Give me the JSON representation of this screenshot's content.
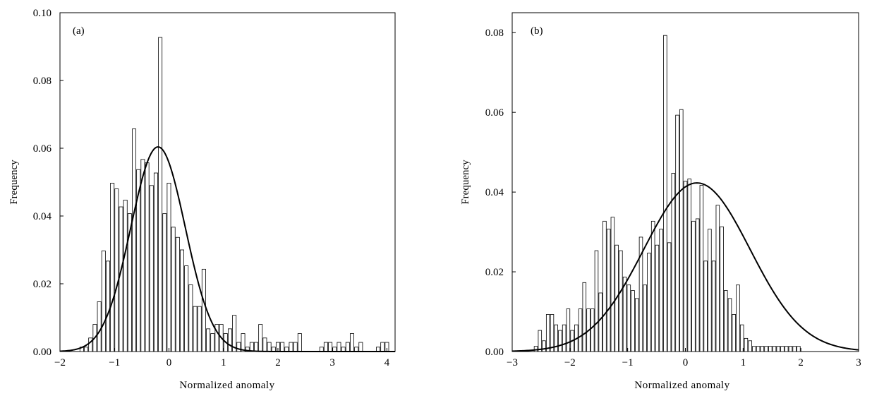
{
  "chart_data": [
    {
      "type": "bar",
      "panel_label": "(a)",
      "xlabel": "Normalized anomaly",
      "ylabel": "Frequency",
      "xlim": [
        -2,
        4.15
      ],
      "ylim": [
        0,
        0.1
      ],
      "xticks": [
        -2,
        -1,
        0,
        1,
        2,
        3,
        4
      ],
      "xtick_labels": [
        "−2",
        "−1",
        "0",
        "1",
        "2",
        "3",
        "4"
      ],
      "yticks": [
        0,
        0.02,
        0.04,
        0.06,
        0.08,
        0.1
      ],
      "ytick_labels": [
        "0.00",
        "0.02",
        "0.04",
        "0.06",
        "0.08",
        "0.10"
      ],
      "bin_width": 0.08,
      "bar_centers": [
        -1.6,
        -1.52,
        -1.44,
        -1.36,
        -1.28,
        -1.2,
        -1.12,
        -1.04,
        -0.96,
        -0.88,
        -0.8,
        -0.72,
        -0.64,
        -0.56,
        -0.48,
        -0.4,
        -0.32,
        -0.24,
        -0.16,
        -0.08,
        0.0,
        0.08,
        0.16,
        0.24,
        0.32,
        0.4,
        0.48,
        0.56,
        0.64,
        0.72,
        0.8,
        0.88,
        0.96,
        1.04,
        1.12,
        1.2,
        1.28,
        1.36,
        1.44,
        1.52,
        1.6,
        1.68,
        1.76,
        1.84,
        1.92,
        2.0,
        2.08,
        2.16,
        2.24,
        2.32,
        2.4,
        2.8,
        2.88,
        2.96,
        3.04,
        3.12,
        3.2,
        3.28,
        3.36,
        3.44,
        3.52,
        3.84,
        3.92,
        4.0
      ],
      "bar_values": [
        0.0013,
        0.0013,
        0.004,
        0.008,
        0.0147,
        0.0297,
        0.0267,
        0.0497,
        0.048,
        0.0427,
        0.0447,
        0.0407,
        0.0657,
        0.0537,
        0.0567,
        0.0557,
        0.049,
        0.0527,
        0.0927,
        0.0407,
        0.0497,
        0.0367,
        0.0337,
        0.03,
        0.0253,
        0.0197,
        0.0133,
        0.0133,
        0.0243,
        0.0067,
        0.0053,
        0.008,
        0.008,
        0.0053,
        0.0067,
        0.0107,
        0.0027,
        0.0053,
        0.0013,
        0.0027,
        0.0027,
        0.008,
        0.004,
        0.0027,
        0.0013,
        0.0027,
        0.0027,
        0.0013,
        0.0027,
        0.0027,
        0.0053,
        0.0013,
        0.0027,
        0.0027,
        0.0013,
        0.0027,
        0.0013,
        0.0027,
        0.0053,
        0.0013,
        0.0027,
        0.0013,
        0.0027,
        0.0027
      ],
      "fit_curve": {
        "type": "normal",
        "mean": -0.2,
        "sd": 0.5,
        "peak": 0.0604
      }
    },
    {
      "type": "bar",
      "panel_label": "(b)",
      "xlabel": "Normalized anomaly",
      "ylabel": "Frequency",
      "xlim": [
        -3,
        3
      ],
      "ylim": [
        0,
        0.085
      ],
      "xticks": [
        -3,
        -2,
        -1,
        0,
        1,
        2,
        3
      ],
      "xtick_labels": [
        "−3",
        "−2",
        "−1",
        "0",
        "1",
        "2",
        "3"
      ],
      "yticks": [
        0,
        0.02,
        0.04,
        0.06,
        0.08
      ],
      "ytick_labels": [
        "0.00",
        "0.02",
        "0.04",
        "0.06",
        "0.08"
      ],
      "bin_width": 0.07,
      "bar_centers": [
        -2.59,
        -2.52,
        -2.45,
        -2.38,
        -2.31,
        -2.24,
        -2.17,
        -2.1,
        -2.03,
        -1.96,
        -1.89,
        -1.82,
        -1.75,
        -1.68,
        -1.61,
        -1.54,
        -1.47,
        -1.4,
        -1.33,
        -1.26,
        -1.19,
        -1.12,
        -1.05,
        -0.98,
        -0.91,
        -0.84,
        -0.77,
        -0.7,
        -0.63,
        -0.56,
        -0.49,
        -0.42,
        -0.35,
        -0.28,
        -0.21,
        -0.14,
        -0.07,
        0.0,
        0.07,
        0.14,
        0.21,
        0.28,
        0.35,
        0.42,
        0.49,
        0.56,
        0.63,
        0.7,
        0.77,
        0.84,
        0.91,
        0.98,
        1.05,
        1.12,
        1.19,
        1.26,
        1.33,
        1.4,
        1.47,
        1.54,
        1.61,
        1.68,
        1.75,
        1.82,
        1.89,
        1.96
      ],
      "bar_values": [
        0.0013,
        0.0053,
        0.0027,
        0.0093,
        0.0093,
        0.0067,
        0.0053,
        0.0067,
        0.0107,
        0.0053,
        0.0067,
        0.0107,
        0.0173,
        0.0107,
        0.0107,
        0.0253,
        0.0147,
        0.0327,
        0.0307,
        0.0337,
        0.0267,
        0.0253,
        0.0187,
        0.0167,
        0.0153,
        0.0133,
        0.0287,
        0.0167,
        0.0247,
        0.0327,
        0.0267,
        0.0307,
        0.0793,
        0.0273,
        0.0447,
        0.0593,
        0.0607,
        0.0427,
        0.0433,
        0.0327,
        0.0333,
        0.0417,
        0.0227,
        0.0307,
        0.0227,
        0.0367,
        0.0313,
        0.0153,
        0.0133,
        0.0093,
        0.0167,
        0.0067,
        0.0033,
        0.0027,
        0.0013,
        0.0013,
        0.0013,
        0.0013,
        0.0013,
        0.0013,
        0.0013,
        0.0013,
        0.0013,
        0.0013,
        0.0013,
        0.0013
      ],
      "fit_curve": {
        "type": "normal",
        "mean": 0.2,
        "sd": 0.92,
        "peak": 0.0423
      }
    }
  ]
}
